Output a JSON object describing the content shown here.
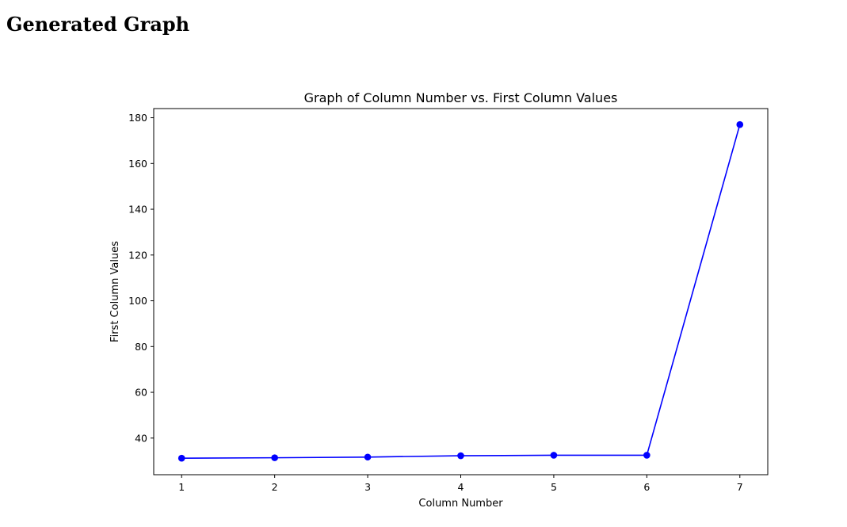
{
  "page": {
    "heading": "Generated Graph"
  },
  "chart_data": {
    "type": "line",
    "title": "Graph of Column Number vs. First Column Values",
    "xlabel": "Column Number",
    "ylabel": "First Column Values",
    "x": [
      1,
      2,
      3,
      4,
      5,
      6,
      7
    ],
    "series": [
      {
        "values": [
          31.2,
          31.4,
          31.7,
          32.3,
          32.5,
          32.5,
          177.0
        ],
        "color": "#0000ff",
        "marker": "circle"
      }
    ],
    "xticks": [
      "1",
      "2",
      "3",
      "4",
      "5",
      "6",
      "7"
    ],
    "yticks": [
      "40",
      "60",
      "80",
      "100",
      "120",
      "140",
      "160",
      "180"
    ],
    "xlim": [
      0.7,
      7.3
    ],
    "ylim": [
      24,
      184
    ],
    "grid": false,
    "legend": "none"
  }
}
